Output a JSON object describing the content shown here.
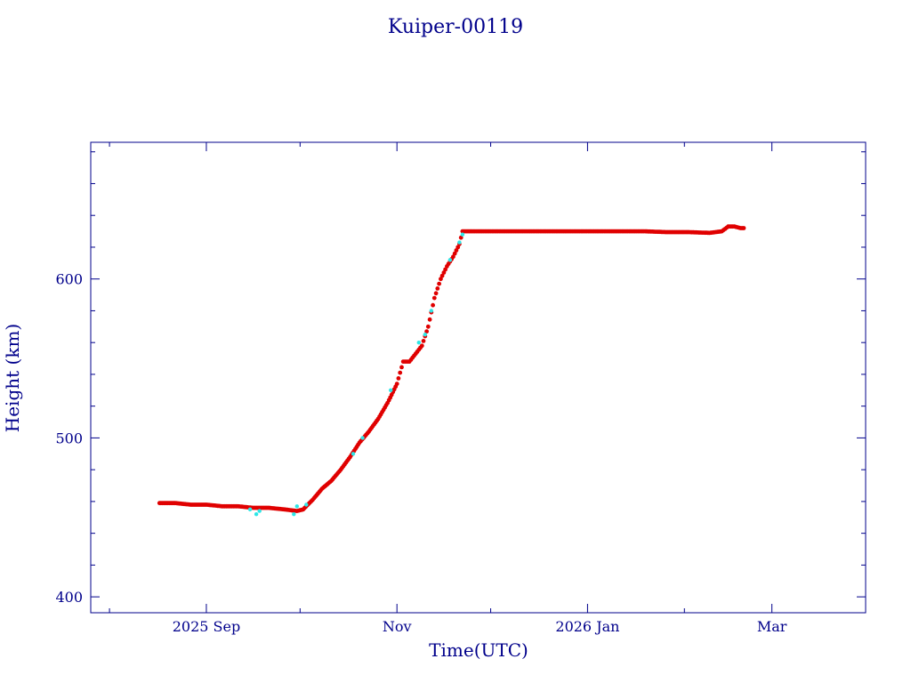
{
  "chart_data": {
    "type": "scatter",
    "title": "Kuiper-00119",
    "xlabel": "Time(UTC)",
    "ylabel": "Height (km)",
    "x_tick_labels": [
      {
        "date": "2025-09-01",
        "label": "2025 Sep"
      },
      {
        "date": "2025-11-01",
        "label": "Nov"
      },
      {
        "date": "2026-01-01",
        "label": "2026 Jan"
      },
      {
        "date": "2026-03-01",
        "label": "Mar"
      }
    ],
    "xlim": [
      "2025-07-26",
      "2026-03-31"
    ],
    "ylim": [
      390,
      686
    ],
    "y_ticks": [
      400,
      500,
      600
    ],
    "colors": {
      "axis": "#00008b",
      "text": "#00008b",
      "series_main": "#e00000",
      "series_alt": "#2ee6e6"
    },
    "series": [
      {
        "color": "#e00000",
        "points": [
          [
            "2025-08-17",
            459
          ],
          [
            "2025-08-22",
            459
          ],
          [
            "2025-08-27",
            458
          ],
          [
            "2025-09-01",
            458
          ],
          [
            "2025-09-06",
            457
          ],
          [
            "2025-09-11",
            457
          ],
          [
            "2025-09-16",
            456
          ],
          [
            "2025-09-21",
            456
          ],
          [
            "2025-09-26",
            455
          ],
          [
            "2025-09-30",
            454
          ],
          [
            "2025-10-02",
            455
          ],
          [
            "2025-10-05",
            461
          ],
          [
            "2025-10-08",
            468
          ],
          [
            "2025-10-11",
            473
          ],
          [
            "2025-10-14",
            480
          ],
          [
            "2025-10-17",
            488
          ],
          [
            "2025-10-20",
            497
          ],
          [
            "2025-10-23",
            504
          ],
          [
            "2025-10-26",
            512
          ],
          [
            "2025-10-29",
            522
          ],
          [
            "2025-11-01",
            534
          ],
          [
            "2025-11-03",
            548
          ],
          [
            "2025-11-05",
            548
          ],
          [
            "2025-11-07",
            553
          ],
          [
            "2025-11-09",
            558
          ],
          [
            "2025-11-11",
            570
          ],
          [
            "2025-11-13",
            588
          ],
          [
            "2025-11-15",
            600
          ],
          [
            "2025-11-17",
            608
          ],
          [
            "2025-11-19",
            614
          ],
          [
            "2025-11-21",
            622
          ],
          [
            "2025-11-22",
            630
          ],
          [
            "2025-11-25",
            630
          ],
          [
            "2025-12-01",
            630
          ],
          [
            "2025-12-08",
            630
          ],
          [
            "2025-12-15",
            630
          ],
          [
            "2025-12-22",
            630
          ],
          [
            "2025-12-29",
            630
          ],
          [
            "2026-01-05",
            630
          ],
          [
            "2026-01-12",
            630
          ],
          [
            "2026-01-19",
            630
          ],
          [
            "2026-01-26",
            629.5
          ],
          [
            "2026-02-02",
            629.5
          ],
          [
            "2026-02-09",
            629
          ],
          [
            "2026-02-13",
            630
          ],
          [
            "2026-02-15",
            633
          ],
          [
            "2026-02-17",
            633
          ],
          [
            "2026-02-19",
            632
          ],
          [
            "2026-02-20",
            632
          ]
        ]
      },
      {
        "color": "#2ee6e6",
        "points": [
          [
            "2025-09-17",
            452
          ],
          [
            "2025-09-18",
            454
          ],
          [
            "2025-09-15",
            455
          ],
          [
            "2025-09-29",
            452
          ],
          [
            "2025-09-30",
            457
          ],
          [
            "2025-10-03",
            458
          ],
          [
            "2025-10-18",
            490
          ],
          [
            "2025-10-21",
            500
          ],
          [
            "2025-10-30",
            530
          ],
          [
            "2025-11-08",
            560
          ],
          [
            "2025-11-10",
            565
          ],
          [
            "2025-11-12",
            580
          ],
          [
            "2025-11-18",
            612
          ],
          [
            "2025-11-21",
            623
          ],
          [
            "2025-11-22",
            628
          ]
        ]
      }
    ]
  }
}
